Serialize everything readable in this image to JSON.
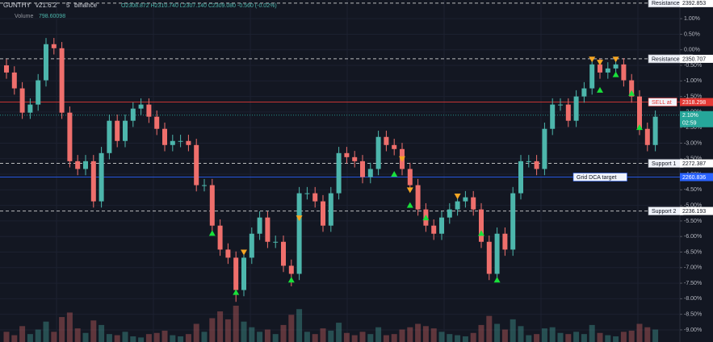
{
  "chart_data": {
    "type": "candlestick",
    "symbol": "GUNTHY",
    "version": "v21.6.2",
    "interval": "5",
    "exchange": "binance",
    "ohlc_text": "O2308.872 H2310.740 L2307.140 C2309.080 -0.560 (-0.02%)",
    "volume_label": "Volume",
    "volume_value": "798.60098",
    "up_color": "#4db6ac",
    "down_color": "#ef6f6c",
    "grid": true,
    "ylim": [
      -9.39,
      1.6
    ],
    "yticks": [
      {
        "value": 1.0,
        "label": "1.00%"
      },
      {
        "value": 0.5,
        "label": "0.50%"
      },
      {
        "value": 0.0,
        "label": "0.00%"
      },
      {
        "value": -0.5,
        "label": "-0.50%"
      },
      {
        "value": -1.0,
        "label": "-1.00%"
      },
      {
        "value": -1.5,
        "label": "-1.50%"
      },
      {
        "value": -2.0,
        "label": "-2.00%"
      },
      {
        "value": -2.5,
        "label": "-2.50%"
      },
      {
        "value": -3.0,
        "label": "-3.00%"
      },
      {
        "value": -3.5,
        "label": "-3.50%"
      },
      {
        "value": -4.0,
        "label": "-4.00%"
      },
      {
        "value": -4.5,
        "label": "-4.50%"
      },
      {
        "value": -5.0,
        "label": "-5.00%"
      },
      {
        "value": -5.5,
        "label": "-5.50%"
      },
      {
        "value": -6.0,
        "label": "-6.00%"
      },
      {
        "value": -6.5,
        "label": "-6.50%"
      },
      {
        "value": -7.0,
        "label": "-7.00%"
      },
      {
        "value": -7.5,
        "label": "-7.50%"
      },
      {
        "value": -8.0,
        "label": "-8.00%"
      },
      {
        "value": -8.5,
        "label": "-8.50%"
      },
      {
        "value": -9.0,
        "label": "-9.00%"
      }
    ],
    "open": [
      -0.5,
      -0.73,
      -1.24,
      -2.02,
      -1.76,
      -0.98,
      0.18,
      0.05,
      -2.02,
      -3.58,
      -3.83,
      -3.58,
      -4.87,
      -3.32,
      -2.28,
      -2.93,
      -2.28,
      -1.89,
      -1.76,
      -2.15,
      -2.54,
      -3.06,
      -2.93,
      -2.93,
      -3.06,
      -4.35,
      -4.35,
      -5.65,
      -6.42,
      -6.68,
      -7.72,
      -6.68,
      -5.91,
      -5.39,
      -6.17,
      -6.17,
      -6.94,
      -7.2,
      -4.61,
      -4.61,
      -4.87,
      -5.65,
      -4.61,
      -3.32,
      -3.45,
      -3.58,
      -4.09,
      -3.83,
      -2.8,
      -3.06,
      -3.19,
      -3.83,
      -4.35,
      -5.13,
      -5.65,
      -5.91,
      -5.39,
      -5.13,
      -4.87,
      -4.74,
      -5.13,
      -6.17,
      -7.2,
      -5.91,
      -6.42,
      -4.61,
      -3.58,
      -3.58,
      -3.83,
      -2.54,
      -1.76,
      -1.76,
      -2.28,
      -1.5,
      -1.24,
      -0.47,
      -0.73,
      -0.6,
      -0.47,
      -0.98,
      -1.5,
      -2.54,
      -3.06
    ],
    "high": [
      -0.3,
      -0.53,
      -1.04,
      -1.56,
      -0.78,
      0.38,
      0.38,
      0.25,
      -1.82,
      -3.38,
      -3.38,
      -3.38,
      -3.12,
      -2.08,
      -2.08,
      -2.08,
      -1.69,
      -1.56,
      -1.56,
      -1.95,
      -2.34,
      -2.73,
      -2.73,
      -2.73,
      -2.86,
      -4.15,
      -4.15,
      -5.45,
      -6.22,
      -6.48,
      -6.48,
      -5.71,
      -5.19,
      -5.19,
      -5.97,
      -5.97,
      -6.74,
      -4.41,
      -4.41,
      -4.41,
      -4.67,
      -4.41,
      -3.12,
      -3.12,
      -3.25,
      -3.38,
      -3.63,
      -2.6,
      -2.6,
      -2.86,
      -2.99,
      -3.63,
      -4.15,
      -4.93,
      -5.45,
      -5.19,
      -4.93,
      -4.67,
      -4.54,
      -4.54,
      -4.93,
      -5.97,
      -5.71,
      -5.71,
      -4.41,
      -3.38,
      -3.38,
      -3.38,
      -2.34,
      -1.56,
      -1.56,
      -1.56,
      -1.3,
      -1.04,
      -0.27,
      -0.27,
      -0.4,
      -0.27,
      -0.27,
      -0.78,
      -1.3,
      -2.34,
      -1.95
    ],
    "low": [
      -0.93,
      -1.44,
      -2.22,
      -2.22,
      -1.96,
      -1.18,
      -0.15,
      -2.22,
      -3.78,
      -4.03,
      -4.03,
      -5.07,
      -5.07,
      -3.52,
      -3.13,
      -3.13,
      -2.48,
      -2.09,
      -2.35,
      -2.74,
      -3.26,
      -3.26,
      -3.13,
      -3.26,
      -4.55,
      -4.55,
      -5.85,
      -6.62,
      -6.88,
      -8.1,
      -7.92,
      -6.88,
      -6.11,
      -6.37,
      -6.37,
      -7.14,
      -7.6,
      -7.4,
      -4.81,
      -5.07,
      -5.85,
      -5.85,
      -4.81,
      -3.65,
      -3.78,
      -4.29,
      -4.29,
      -4.03,
      -3.26,
      -3.39,
      -4.03,
      -4.55,
      -5.33,
      -5.85,
      -6.11,
      -6.11,
      -5.59,
      -5.33,
      -5.07,
      -5.33,
      -6.37,
      -7.4,
      -7.4,
      -6.62,
      -6.62,
      -4.81,
      -3.78,
      -4.03,
      -4.03,
      -2.74,
      -1.96,
      -2.48,
      -2.48,
      -1.7,
      -1.44,
      -0.93,
      -0.93,
      -0.8,
      -1.18,
      -1.7,
      -2.74,
      -3.26,
      -3.26
    ],
    "close": [
      -0.73,
      -1.24,
      -2.02,
      -1.76,
      -0.98,
      0.18,
      0.05,
      -2.02,
      -3.58,
      -3.83,
      -3.58,
      -4.87,
      -3.32,
      -2.28,
      -2.93,
      -2.28,
      -1.89,
      -1.76,
      -2.15,
      -2.54,
      -3.06,
      -2.93,
      -2.93,
      -3.06,
      -4.35,
      -4.35,
      -5.65,
      -6.42,
      -6.68,
      -7.72,
      -6.68,
      -5.91,
      -5.39,
      -6.17,
      -6.17,
      -6.94,
      -7.2,
      -4.61,
      -4.61,
      -4.87,
      -5.65,
      -4.61,
      -3.32,
      -3.45,
      -3.58,
      -4.09,
      -3.83,
      -2.8,
      -3.06,
      -3.19,
      -3.83,
      -4.35,
      -5.13,
      -5.65,
      -5.91,
      -5.39,
      -5.13,
      -4.87,
      -4.74,
      -5.13,
      -6.17,
      -7.2,
      -5.91,
      -6.42,
      -4.61,
      -3.58,
      -3.58,
      -3.83,
      -2.54,
      -1.76,
      -1.76,
      -2.28,
      -1.5,
      -1.24,
      -0.47,
      -0.73,
      -0.6,
      -0.47,
      -0.98,
      -1.5,
      -2.54,
      -3.06,
      -2.15
    ],
    "volume": [
      900,
      600,
      1400,
      700,
      1100,
      1800,
      900,
      2200,
      2600,
      1200,
      800,
      1900,
      1500,
      700,
      600,
      900,
      500,
      400,
      700,
      800,
      1000,
      600,
      500,
      700,
      1600,
      900,
      2100,
      2700,
      2000,
      3200,
      1800,
      1300,
      900,
      1100,
      700,
      1500,
      2400,
      2900,
      900,
      700,
      1200,
      1000,
      1700,
      800,
      600,
      900,
      700,
      1300,
      600,
      700,
      1100,
      1300,
      1600,
      1400,
      1200,
      900,
      700,
      600,
      500,
      800,
      1500,
      2300,
      1600,
      1100,
      2000,
      1400,
      600,
      700,
      1200,
      1300,
      800,
      700,
      900,
      700,
      1500,
      800,
      600,
      500,
      900,
      1000,
      1600,
      1300,
      1100
    ],
    "buy_signals": {
      "color": "#19e03a",
      "x": [
        26,
        29,
        36,
        49,
        51,
        53,
        60,
        62,
        75,
        77,
        79,
        80
      ],
      "values": [
        -5.9,
        -7.8,
        -7.4,
        -4.0,
        -5.0,
        -5.4,
        -5.9,
        -7.4,
        -1.3,
        -0.8,
        -1.4,
        -2.5
      ]
    },
    "sell_signals": {
      "color": "#f5a623",
      "x": [
        30,
        37,
        50,
        51,
        57,
        74,
        75,
        77
      ],
      "values": [
        -6.5,
        -5.4,
        -3.5,
        -4.5,
        -4.7,
        -0.3,
        -0.4,
        -0.3
      ]
    },
    "levels": [
      {
        "label": "Resistance 2",
        "price": "2392.853",
        "value": 1.5,
        "color": "#d8d8d8",
        "line": "dashed"
      },
      {
        "label": "Resistance 1",
        "price": "2350.707",
        "value": -0.29,
        "color": "#d8d8d8",
        "line": "dashed"
      },
      {
        "label": "SELL at",
        "price": "2318.298",
        "value": -1.68,
        "color": "#e53935",
        "line": "solid"
      },
      {
        "price": "2.10%",
        "sublabel": "02:59",
        "value": -2.1,
        "color": "#26a69a",
        "line": "dotted"
      },
      {
        "label": "Support 1",
        "price": "2272.387",
        "value": -3.65,
        "color": "#d8d8d8",
        "line": "dashed"
      },
      {
        "label": "Grid DCA target",
        "price": "2260.836",
        "value": -4.09,
        "color": "#2962ff",
        "line": "solid"
      },
      {
        "label": "Support 2",
        "price": "2236.193",
        "value": -5.18,
        "color": "#d8d8d8",
        "line": "dashed"
      }
    ]
  }
}
